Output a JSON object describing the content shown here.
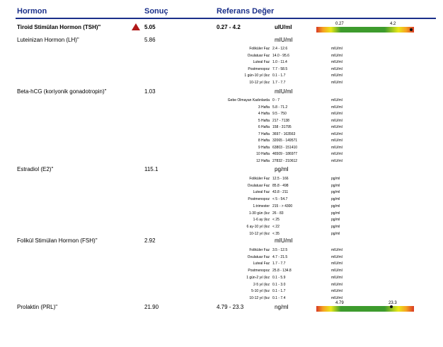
{
  "headers": {
    "hormone": "Hormon",
    "result": "Sonuç",
    "reference": "Referans Değer"
  },
  "tests": {
    "tsh": {
      "name": "Tiroid Stimülan Hormon (TSH)\"",
      "value": "5.05",
      "ref": "0.27 - 4.2",
      "unit": "uIU/ml",
      "range_low": "0.27",
      "range_high": "4.2"
    },
    "lh": {
      "name": "Luteinizan Hormon (LH)\"",
      "value": "5.86",
      "unit": "mIU/ml",
      "rows": [
        {
          "label": "Foliküler Faz",
          "range": "2.4 - 12.6",
          "unit": "mIU/ml"
        },
        {
          "label": "Ovulatuar Faz",
          "range": "14.0 - 95.6",
          "unit": "mIU/ml"
        },
        {
          "label": "Luteal Faz",
          "range": "1.0 - 11.4",
          "unit": "mIU/ml"
        },
        {
          "label": "Postmenopoz",
          "range": "7.7 - 58.5",
          "unit": "mIU/ml"
        },
        {
          "label": "1 gün-10 yıl (kız",
          "range": "0.1 - 1.7",
          "unit": "mIU/ml"
        },
        {
          "label": "10-12 yıl (kız",
          "range": "1.7 - 7.7",
          "unit": "mIU/ml"
        }
      ]
    },
    "hcg": {
      "name": "Beta-hCG (koriyonik gonadotropin)\"",
      "value": "1.03",
      "unit": "mIU/ml",
      "rows": [
        {
          "label": "Gebe Olmayan Kadınlarda",
          "range": "0 - 7",
          "unit": "mIU/ml"
        },
        {
          "label": "3 Hafta",
          "range": "5.8 - 71.2",
          "unit": "mIU/ml"
        },
        {
          "label": "4 Hafta",
          "range": "9.5 - 750",
          "unit": "mIU/ml"
        },
        {
          "label": "5 Hafta",
          "range": "217 - 7138",
          "unit": "mIU/ml"
        },
        {
          "label": "6 Hafta",
          "range": "158 - 31795",
          "unit": "mIU/ml"
        },
        {
          "label": "7 Hafta",
          "range": "3697 - 163563",
          "unit": "mIU/ml"
        },
        {
          "label": "8 Hafta",
          "range": "32065 - 149571",
          "unit": "mIU/ml"
        },
        {
          "label": "9 Hafta",
          "range": "63803 - 151410",
          "unit": "mIU/ml"
        },
        {
          "label": "10 Hafta",
          "range": "46509 - 186977",
          "unit": "mIU/ml"
        },
        {
          "label": "12 Hafta",
          "range": "27832 - 210612",
          "unit": "mIU/ml"
        }
      ]
    },
    "e2": {
      "name": "Estradiol (E2)\"",
      "value": "115.1",
      "unit": "pg/ml",
      "rows": [
        {
          "label": "Foliküler Faz",
          "range": "12.5 - 166",
          "unit": "pg/ml"
        },
        {
          "label": "Ovulatuar Faz",
          "range": "85.8 - 498",
          "unit": "pg/ml"
        },
        {
          "label": "Luteal Faz",
          "range": "43.8 - 211",
          "unit": "pg/ml"
        },
        {
          "label": "Postmenopoz",
          "range": "< 5 - 54.7",
          "unit": "pg/ml"
        },
        {
          "label": "1.trimester",
          "range": "215 - > 4300",
          "unit": "pg/ml"
        },
        {
          "label": "1-30 gün (kız",
          "range": "26 - 83",
          "unit": "pg/ml"
        },
        {
          "label": "1-6 ay (kız",
          "range": "< 25",
          "unit": "pg/ml"
        },
        {
          "label": "6 ay-10 yıl (kız",
          "range": "< 22",
          "unit": "pg/ml"
        },
        {
          "label": "10-12 yıl (kız",
          "range": "< 35",
          "unit": "pg/ml"
        }
      ]
    },
    "fsh": {
      "name": "Folikül Stimülan Hormon (FSH)\"",
      "value": "2.92",
      "unit": "mIU/ml",
      "rows": [
        {
          "label": "Foliküler Faz",
          "range": "3.5 - 12.5",
          "unit": "mIU/ml"
        },
        {
          "label": "Ovulatuar Faz",
          "range": "4.7 - 21.5",
          "unit": "mIU/ml"
        },
        {
          "label": "Luteal Faz",
          "range": "1.7 - 7.7",
          "unit": "mIU/ml"
        },
        {
          "label": "Postmenopoz",
          "range": "25.8 - 134.8",
          "unit": "mIU/ml"
        },
        {
          "label": "1 gün-2 yıl (kız",
          "range": "0.1 - 5.9",
          "unit": "mIU/ml"
        },
        {
          "label": "2-5 yıl (kız",
          "range": "0.1 - 3.0",
          "unit": "mIU/ml"
        },
        {
          "label": "5-10 yıl (kız",
          "range": "0.1 - 1.7",
          "unit": "mIU/ml"
        },
        {
          "label": "10-12 yıl (kız",
          "range": "0.1 - 7.4",
          "unit": "mIU/ml"
        }
      ]
    },
    "prl": {
      "name": "Prolaktin (PRL)\"",
      "value": "21.90",
      "ref": "4.79 - 23.3",
      "unit": "ng/ml",
      "range_low": "4.79",
      "range_high": "23.3"
    }
  },
  "colors": {
    "header": "#1a2f8a",
    "alert": "#b01919"
  }
}
